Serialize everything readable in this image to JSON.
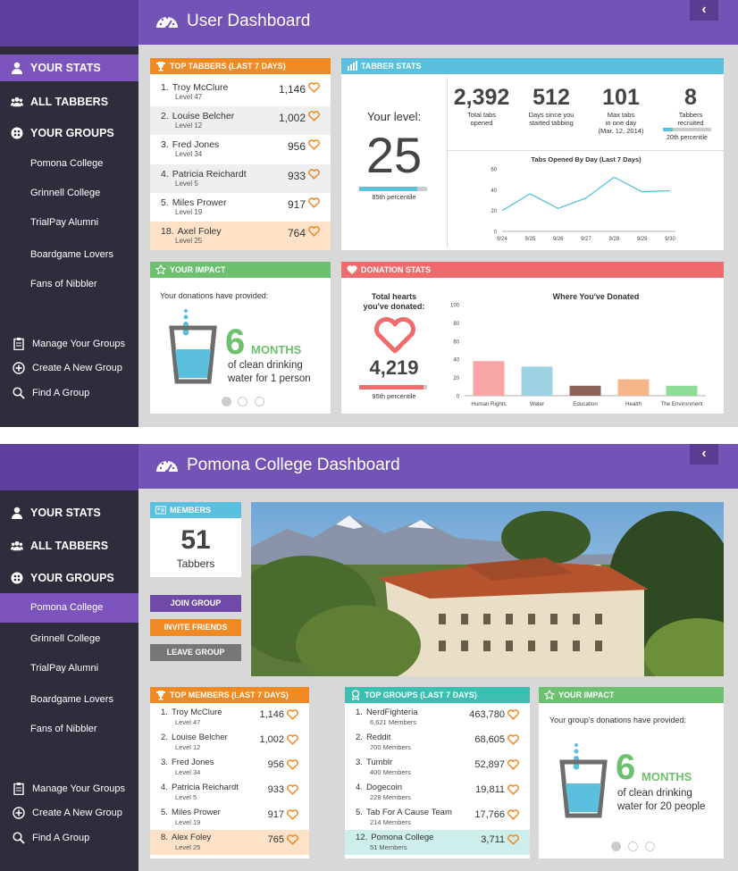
{
  "sidebar": {
    "main_items": [
      "YOUR STATS",
      "ALL TABBERS",
      "YOUR GROUPS"
    ],
    "groups": [
      "Pomona College",
      "Grinnell College",
      "TrialPay Alumni",
      "Boardgame Lovers",
      "Fans of Nibbler"
    ],
    "actions": [
      "Manage Your Groups",
      "Create A New Group",
      "Find A Group"
    ]
  },
  "user_dashboard": {
    "title": "User Dashboard",
    "top_tabbers": {
      "header": "TOP TABBERS (LAST 7 DAYS)",
      "rows": [
        {
          "rank": "1.",
          "name": "Troy McClure",
          "level": "Level 47",
          "count": "1,146"
        },
        {
          "rank": "2.",
          "name": "Louise Belcher",
          "level": "Level 12",
          "count": "1,002"
        },
        {
          "rank": "3.",
          "name": "Fred Jones",
          "level": "Level 34",
          "count": "956"
        },
        {
          "rank": "4.",
          "name": "Patricia Reichardt",
          "level": "Level 5",
          "count": "933"
        },
        {
          "rank": "5.",
          "name": "Miles Prower",
          "level": "Level 19",
          "count": "917"
        },
        {
          "rank": "18.",
          "name": "Axel Foley",
          "level": "Level 25",
          "count": "764"
        }
      ]
    },
    "tabber_stats": {
      "header": "TABBER STATS",
      "level_label": "Your level:",
      "level": "25",
      "level_percentile": "85th percentile",
      "level_progress": 0.85,
      "stats": [
        {
          "value": "2,392",
          "label": "Total tabs\nopened"
        },
        {
          "value": "512",
          "label": "Days since you\nstarted tabbing"
        },
        {
          "value": "101",
          "label": "Max tabs\nin one day\n(Mar. 12, 2014)"
        },
        {
          "value": "8",
          "label": "Tabbers\nrecruited"
        }
      ],
      "recruit_percentile": "20th percentile",
      "recruit_progress": 0.2
    },
    "impact": {
      "header": "YOUR IMPACT",
      "intro": "Your donations have provided:",
      "big_number": "6",
      "unit": "MONTHS",
      "line1": "of clean drinking",
      "line2": "water for 1 person"
    },
    "donation": {
      "header": "DONATION STATS",
      "hearts_label": "Total hearts\nyou've donated:",
      "hearts": "4,219",
      "hearts_percentile": "95th percentile",
      "hearts_progress": 0.95
    }
  },
  "group_dashboard": {
    "title": "Pomona College Dashboard",
    "members": {
      "header": "MEMBERS",
      "count": "51",
      "label": "Tabbers"
    },
    "buttons": {
      "join": "JOIN GROUP",
      "invite": "INVITE FRIENDS",
      "leave": "LEAVE GROUP"
    },
    "top_members": {
      "header": "TOP MEMBERS (LAST 7 DAYS)",
      "rows": [
        {
          "rank": "1.",
          "name": "Troy McClure",
          "level": "Level 47",
          "count": "1,146"
        },
        {
          "rank": "2.",
          "name": "Louise Belcher",
          "level": "Level 12",
          "count": "1,002"
        },
        {
          "rank": "3.",
          "name": "Fred Jones",
          "level": "Level 34",
          "count": "956"
        },
        {
          "rank": "4.",
          "name": "Patricia Reichardt",
          "level": "Level 5",
          "count": "933"
        },
        {
          "rank": "5.",
          "name": "Miles Prower",
          "level": "Level 19",
          "count": "917"
        },
        {
          "rank": "8.",
          "name": "Alex Foley",
          "level": "Level 25",
          "count": "765"
        }
      ]
    },
    "top_groups": {
      "header": "TOP GROUPS (LAST 7 DAYS)",
      "rows": [
        {
          "rank": "1.",
          "name": "NerdFighteria",
          "level": "6,621 Members",
          "count": "463,780"
        },
        {
          "rank": "2.",
          "name": "Reddit",
          "level": "700 Members",
          "count": "68,605"
        },
        {
          "rank": "3.",
          "name": "Tumblr",
          "level": "400 Members",
          "count": "52,897"
        },
        {
          "rank": "4.",
          "name": "Dogecoin",
          "level": "228 Members",
          "count": "19,811"
        },
        {
          "rank": "5.",
          "name": "Tab For A Cause Team",
          "level": "214 Members",
          "count": "17,766"
        },
        {
          "rank": "12.",
          "name": "Pomona College",
          "level": "51 Members",
          "count": "3,711"
        }
      ]
    },
    "impact": {
      "header": "YOUR IMPACT",
      "intro": "Your group's donations have provided:",
      "big_number": "6",
      "unit": "MONTHS",
      "line1": "of clean drinking",
      "line2": "water for 20 people"
    }
  },
  "chart_data": [
    {
      "type": "line",
      "title": "Tabs Opened By Day (Last 7 Days)",
      "x": [
        "9/24",
        "9/25",
        "9/26",
        "9/27",
        "9/28",
        "9/29",
        "9/30"
      ],
      "series": [
        {
          "values": [
            20,
            36,
            22,
            32,
            52,
            38,
            39
          ]
        }
      ],
      "yticks": [
        0,
        20,
        40,
        60
      ],
      "ylim": [
        0,
        60
      ],
      "xlabel": "",
      "ylabel": "",
      "color": "#5bc0de"
    },
    {
      "type": "bar",
      "title": "Where You've Donated",
      "categories": [
        "Human Rights",
        "Water",
        "Education",
        "Health",
        "The Environment"
      ],
      "values": [
        38,
        32,
        11,
        18,
        11
      ],
      "colors": [
        "#f8a5a5",
        "#9dd3e0",
        "#8d6459",
        "#f6b68a",
        "#8fdc96"
      ],
      "yticks": [
        0,
        20,
        40,
        60,
        80,
        100
      ],
      "ylim": [
        0,
        100
      ],
      "xlabel": "",
      "ylabel": ""
    }
  ],
  "colors": {
    "purple": "#7453b6",
    "sidebar": "#2f2c3b",
    "orange": "#f08a24",
    "blue": "#5bc0de",
    "green": "#6cc070",
    "red": "#f06b6b",
    "teal": "#3bbfb0"
  }
}
